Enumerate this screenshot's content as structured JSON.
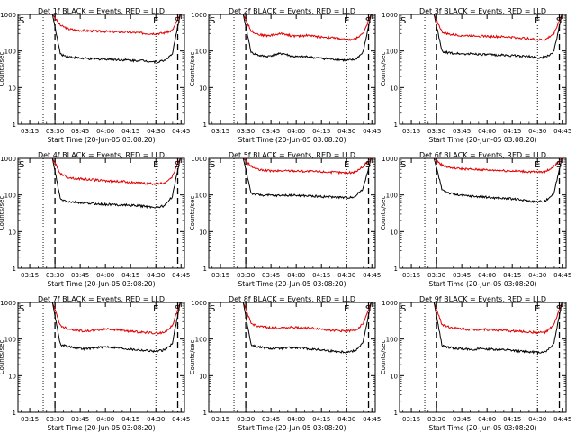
{
  "chart_data": [
    {
      "type": "line",
      "title": "Det 1f BLACK = Events, RED = LLD",
      "xlabel": "Start Time (20-Jun-05 03:08:20)",
      "ylabel": "Counts/sec",
      "xlim": [
        "03:08",
        "04:47"
      ],
      "ylim": [
        1,
        1000
      ],
      "yscale": "log",
      "xticks": [
        "03:15",
        "03:30",
        "03:45",
        "04:00",
        "04:15",
        "04:30",
        "04:45"
      ],
      "yticks": [
        "1",
        "10",
        "100",
        "1000"
      ],
      "markers": [
        {
          "label": "S",
          "time": "03:08"
        },
        {
          "label": "E",
          "time": "04:30"
        },
        {
          "label": "S",
          "time": "04:45"
        }
      ],
      "dotted_times": [
        "03:23",
        "04:30"
      ],
      "dashed_times": [
        "03:30",
        "04:43"
      ],
      "series": [
        {
          "name": "LLD",
          "color": "#e00000",
          "values": [
            1000,
            500,
            400,
            370,
            360,
            350,
            340,
            340,
            330,
            330,
            320,
            310,
            300,
            300,
            310,
            360,
            1000
          ]
        },
        {
          "name": "Events",
          "color": "#000000",
          "values": [
            1000,
            80,
            70,
            65,
            62,
            60,
            60,
            60,
            58,
            57,
            55,
            55,
            53,
            50,
            55,
            80,
            1000
          ]
        }
      ]
    },
    {
      "type": "line",
      "title": "Det 2f BLACK = Events, RED = LLD",
      "xlabel": "Start Time (20-Jun-05 03:08:20)",
      "ylabel": "Counts/sec",
      "xlim": [
        "03:08",
        "04:47"
      ],
      "ylim": [
        1,
        1000
      ],
      "yscale": "log",
      "xticks": [
        "03:15",
        "03:30",
        "03:45",
        "04:00",
        "04:15",
        "04:30",
        "04:45"
      ],
      "yticks": [
        "1",
        "10",
        "100",
        "1000"
      ],
      "markers": [
        {
          "label": "S",
          "time": "03:08"
        },
        {
          "label": "E",
          "time": "04:30"
        },
        {
          "label": "S",
          "time": "04:45"
        }
      ],
      "dotted_times": [
        "03:23",
        "04:30"
      ],
      "dashed_times": [
        "03:30",
        "04:43"
      ],
      "series": [
        {
          "name": "LLD",
          "color": "#e00000",
          "values": [
            1000,
            350,
            280,
            260,
            280,
            300,
            260,
            250,
            270,
            250,
            240,
            230,
            220,
            200,
            210,
            300,
            1000
          ]
        },
        {
          "name": "Events",
          "color": "#000000",
          "values": [
            1000,
            90,
            75,
            70,
            80,
            85,
            72,
            68,
            70,
            65,
            62,
            60,
            58,
            55,
            58,
            90,
            1000
          ]
        }
      ]
    },
    {
      "type": "line",
      "title": "Det 3f BLACK = Events, RED = LLD",
      "xlabel": "Start Time (20-Jun-05 03:08:20)",
      "ylabel": "Counts/sec",
      "xlim": [
        "03:08",
        "04:47"
      ],
      "ylim": [
        1,
        1000
      ],
      "yscale": "log",
      "xticks": [
        "03:15",
        "03:30",
        "03:45",
        "04:00",
        "04:15",
        "04:30",
        "04:45"
      ],
      "yticks": [
        "1",
        "10",
        "100",
        "1000"
      ],
      "markers": [
        {
          "label": "S",
          "time": "03:08"
        },
        {
          "label": "E",
          "time": "04:30"
        },
        {
          "label": "S",
          "time": "04:45"
        }
      ],
      "dotted_times": [
        "03:23",
        "04:30"
      ],
      "dashed_times": [
        "03:30",
        "04:43"
      ],
      "series": [
        {
          "name": "LLD",
          "color": "#e00000",
          "values": [
            1000,
            330,
            280,
            270,
            260,
            265,
            255,
            250,
            245,
            240,
            235,
            225,
            215,
            200,
            205,
            300,
            1000
          ]
        },
        {
          "name": "Events",
          "color": "#000000",
          "values": [
            1000,
            95,
            88,
            85,
            82,
            84,
            80,
            78,
            78,
            76,
            74,
            72,
            70,
            65,
            68,
            95,
            1000
          ]
        }
      ]
    },
    {
      "type": "line",
      "title": "Det 4f BLACK = Events, RED = LLD",
      "xlabel": "Start Time (20-Jun-05 03:08:20)",
      "ylabel": "Counts/sec",
      "xlim": [
        "03:08",
        "04:47"
      ],
      "ylim": [
        1,
        1000
      ],
      "yscale": "log",
      "xticks": [
        "03:15",
        "03:30",
        "03:45",
        "04:00",
        "04:15",
        "04:30",
        "04:45"
      ],
      "yticks": [
        "1",
        "10",
        "100",
        "1000"
      ],
      "markers": [
        {
          "label": "S",
          "time": "03:08"
        },
        {
          "label": "E",
          "time": "04:30"
        },
        {
          "label": "S",
          "time": "04:45"
        }
      ],
      "dotted_times": [
        "03:23",
        "04:30"
      ],
      "dashed_times": [
        "03:30",
        "04:43"
      ],
      "series": [
        {
          "name": "LLD",
          "color": "#e00000",
          "values": [
            1000,
            380,
            300,
            280,
            270,
            260,
            250,
            240,
            235,
            230,
            220,
            210,
            205,
            200,
            210,
            320,
            1000
          ]
        },
        {
          "name": "Events",
          "color": "#000000",
          "values": [
            1000,
            75,
            65,
            62,
            60,
            58,
            56,
            55,
            54,
            53,
            52,
            50,
            48,
            46,
            50,
            90,
            1000
          ]
        }
      ]
    },
    {
      "type": "line",
      "title": "Det 5f BLACK = Events, RED = LLD",
      "xlabel": "Start Time (20-Jun-05 03:08:20)",
      "ylabel": "Counts/sec",
      "xlim": [
        "03:08",
        "04:47"
      ],
      "ylim": [
        1,
        1000
      ],
      "yscale": "log",
      "xticks": [
        "03:15",
        "03:30",
        "03:45",
        "04:00",
        "04:15",
        "04:30",
        "04:45"
      ],
      "yticks": [
        "1",
        "10",
        "100",
        "1000"
      ],
      "markers": [
        {
          "label": "S",
          "time": "03:08"
        },
        {
          "label": "E",
          "time": "04:30"
        },
        {
          "label": "S",
          "time": "04:45"
        }
      ],
      "dotted_times": [
        "03:23",
        "04:30"
      ],
      "dashed_times": [
        "03:30",
        "04:43"
      ],
      "series": [
        {
          "name": "LLD",
          "color": "#e00000",
          "values": [
            1000,
            600,
            480,
            460,
            450,
            455,
            460,
            450,
            440,
            435,
            430,
            420,
            410,
            400,
            420,
            600,
            1000
          ]
        },
        {
          "name": "Events",
          "color": "#000000",
          "values": [
            1000,
            110,
            100,
            98,
            96,
            97,
            98,
            96,
            94,
            92,
            90,
            88,
            86,
            85,
            90,
            150,
            1000
          ]
        }
      ]
    },
    {
      "type": "line",
      "title": "Det 6f BLACK = Events, RED = LLD",
      "xlabel": "Start Time (20-Jun-05 03:08:20)",
      "ylabel": "Counts/sec",
      "xlim": [
        "03:08",
        "04:47"
      ],
      "ylim": [
        1,
        1000
      ],
      "yscale": "log",
      "xticks": [
        "03:15",
        "03:30",
        "03:45",
        "04:00",
        "04:15",
        "04:30",
        "04:45"
      ],
      "yticks": [
        "1",
        "10",
        "100",
        "1000"
      ],
      "markers": [
        {
          "label": "S",
          "time": "03:08"
        },
        {
          "label": "E",
          "time": "04:30"
        },
        {
          "label": "S",
          "time": "04:45"
        }
      ],
      "dotted_times": [
        "03:23",
        "04:30"
      ],
      "dashed_times": [
        "03:30",
        "04:43"
      ],
      "series": [
        {
          "name": "LLD",
          "color": "#e00000",
          "values": [
            1000,
            650,
            560,
            530,
            510,
            500,
            490,
            480,
            470,
            460,
            450,
            440,
            430,
            420,
            440,
            600,
            1000
          ]
        },
        {
          "name": "Events",
          "color": "#000000",
          "values": [
            1000,
            140,
            110,
            100,
            95,
            92,
            88,
            85,
            82,
            80,
            78,
            72,
            68,
            65,
            70,
            110,
            1000
          ]
        }
      ]
    },
    {
      "type": "line",
      "title": "Det 7f BLACK = Events, RED = LLD",
      "xlabel": "Start Time (20-Jun-05 03:08:20)",
      "ylabel": "Counts/sec",
      "xlim": [
        "03:08",
        "04:47"
      ],
      "ylim": [
        1,
        1000
      ],
      "yscale": "log",
      "xticks": [
        "03:15",
        "03:30",
        "03:45",
        "04:00",
        "04:15",
        "04:30",
        "04:45"
      ],
      "yticks": [
        "1",
        "10",
        "100",
        "1000"
      ],
      "markers": [
        {
          "label": "S",
          "time": "03:08"
        },
        {
          "label": "E",
          "time": "04:30"
        },
        {
          "label": "S",
          "time": "04:45"
        }
      ],
      "dotted_times": [
        "03:23",
        "04:30"
      ],
      "dashed_times": [
        "03:30",
        "04:43"
      ],
      "series": [
        {
          "name": "LLD",
          "color": "#e00000",
          "values": [
            1000,
            230,
            190,
            175,
            165,
            170,
            180,
            190,
            180,
            170,
            160,
            155,
            150,
            145,
            150,
            230,
            1000
          ]
        },
        {
          "name": "Events",
          "color": "#000000",
          "values": [
            1000,
            70,
            62,
            58,
            54,
            56,
            60,
            62,
            58,
            55,
            52,
            50,
            48,
            46,
            50,
            75,
            1000
          ]
        }
      ]
    },
    {
      "type": "line",
      "title": "Det 8f BLACK = Events, RED = LLD",
      "xlabel": "Start Time (20-Jun-05 03:08:20)",
      "ylabel": "Counts/sec",
      "xlim": [
        "03:08",
        "04:47"
      ],
      "ylim": [
        1,
        1000
      ],
      "yscale": "log",
      "xticks": [
        "03:15",
        "03:30",
        "03:45",
        "04:00",
        "04:15",
        "04:30",
        "04:45"
      ],
      "yticks": [
        "1",
        "10",
        "100",
        "1000"
      ],
      "markers": [
        {
          "label": "S",
          "time": "03:08"
        },
        {
          "label": "E",
          "time": "04:30"
        },
        {
          "label": "S",
          "time": "04:45"
        }
      ],
      "dotted_times": [
        "03:23",
        "04:30"
      ],
      "dashed_times": [
        "03:30",
        "04:43"
      ],
      "series": [
        {
          "name": "LLD",
          "color": "#e00000",
          "values": [
            1000,
            260,
            220,
            205,
            200,
            205,
            210,
            205,
            200,
            195,
            185,
            175,
            170,
            165,
            170,
            260,
            1000
          ]
        },
        {
          "name": "Events",
          "color": "#000000",
          "values": [
            1000,
            68,
            60,
            56,
            55,
            56,
            58,
            57,
            55,
            52,
            50,
            47,
            45,
            44,
            48,
            80,
            1000
          ]
        }
      ]
    },
    {
      "type": "line",
      "title": "Det 9f BLACK = Events, RED = LLD",
      "xlabel": "Start Time (20-Jun-05 03:08:20)",
      "ylabel": "Counts/sec",
      "xlim": [
        "03:08",
        "04:47"
      ],
      "ylim": [
        1,
        1000
      ],
      "yscale": "log",
      "xticks": [
        "03:15",
        "03:30",
        "03:45",
        "04:00",
        "04:15",
        "04:30",
        "04:45"
      ],
      "yticks": [
        "1",
        "10",
        "100",
        "1000"
      ],
      "markers": [
        {
          "label": "S",
          "time": "03:08"
        },
        {
          "label": "E",
          "time": "04:30"
        },
        {
          "label": "S",
          "time": "04:45"
        }
      ],
      "dotted_times": [
        "03:23",
        "04:30"
      ],
      "dashed_times": [
        "03:30",
        "04:43"
      ],
      "series": [
        {
          "name": "LLD",
          "color": "#e00000",
          "values": [
            1000,
            250,
            210,
            195,
            185,
            180,
            185,
            180,
            175,
            170,
            165,
            160,
            155,
            150,
            155,
            240,
            1000
          ]
        },
        {
          "name": "Events",
          "color": "#000000",
          "values": [
            1000,
            65,
            58,
            55,
            53,
            52,
            54,
            53,
            51,
            50,
            48,
            46,
            45,
            43,
            46,
            75,
            1000
          ]
        }
      ]
    }
  ]
}
